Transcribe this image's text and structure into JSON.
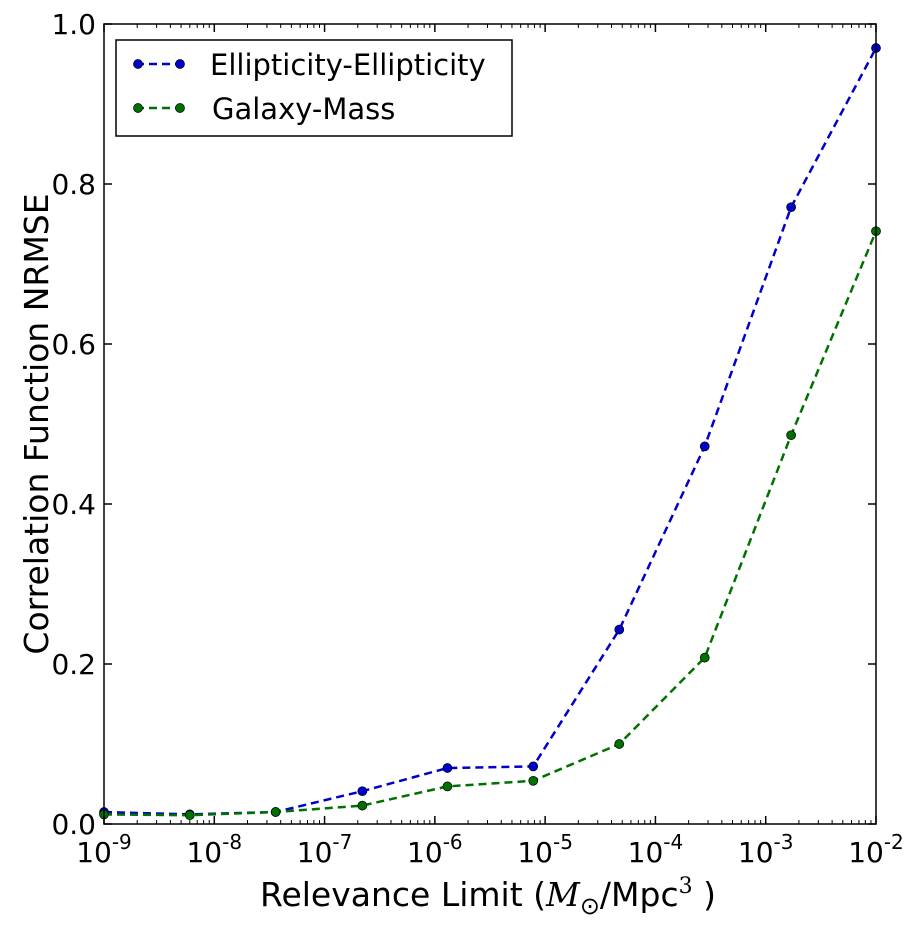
{
  "chart_data": {
    "type": "line",
    "title": "",
    "xlabel_prefix": "Relevance Limit (",
    "xlabel_math_symbol": "M",
    "xlabel_math_subscript": "⊙",
    "xlabel_unit": "/Mpc",
    "xlabel_unit_exponent": "3",
    "xlabel_suffix": " )",
    "ylabel": "Correlation Function NRMSE",
    "x_scale": "log",
    "xlim": [
      1e-09,
      0.01
    ],
    "ylim": [
      0.0,
      1.0
    ],
    "x_tick_base": "10",
    "x_ticks": [
      {
        "value": 1e-09,
        "exponent": "-9"
      },
      {
        "value": 1e-08,
        "exponent": "-8"
      },
      {
        "value": 1e-07,
        "exponent": "-7"
      },
      {
        "value": 1e-06,
        "exponent": "-6"
      },
      {
        "value": 1e-05,
        "exponent": "-5"
      },
      {
        "value": 0.0001,
        "exponent": "-4"
      },
      {
        "value": 0.001,
        "exponent": "-3"
      },
      {
        "value": 0.01,
        "exponent": "-2"
      }
    ],
    "y_ticks": [
      {
        "value": 0.0,
        "label": "0.0"
      },
      {
        "value": 0.2,
        "label": "0.2"
      },
      {
        "value": 0.4,
        "label": "0.4"
      },
      {
        "value": 0.6,
        "label": "0.6"
      },
      {
        "value": 0.8,
        "label": "0.8"
      },
      {
        "value": 1.0,
        "label": "1.0"
      }
    ],
    "grid": false,
    "legend_position": "top-left",
    "x": [
      1e-09,
      6e-09,
      3.6e-08,
      2.2e-07,
      1.3e-06,
      7.8e-06,
      4.7e-05,
      0.00028,
      0.0017,
      0.01
    ],
    "series": [
      {
        "name": "Ellipticity-Ellipticity",
        "color": "#0000cc",
        "line_style": "dashed",
        "marker": "circle",
        "values": [
          0.015,
          0.012,
          0.015,
          0.041,
          0.07,
          0.072,
          0.243,
          0.472,
          0.771,
          0.97
        ]
      },
      {
        "name": "Galaxy-Mass",
        "color": "#007000",
        "line_style": "dashed",
        "marker": "circle",
        "values": [
          0.012,
          0.011,
          0.015,
          0.023,
          0.047,
          0.054,
          0.1,
          0.208,
          0.486,
          0.741
        ]
      }
    ]
  }
}
